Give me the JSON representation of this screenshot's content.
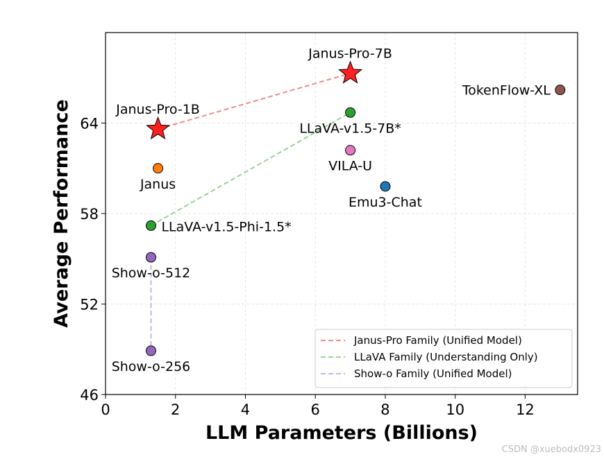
{
  "chart_data": {
    "type": "scatter",
    "xlabel": "LLM Parameters (Billions)",
    "ylabel": "Average Performance",
    "xlim": [
      0,
      13.5
    ],
    "ylim": [
      46,
      70
    ],
    "xticks": [
      0,
      2,
      4,
      6,
      8,
      10,
      12
    ],
    "yticks": [
      46,
      52,
      58,
      64
    ],
    "grid": true,
    "legend_position": "bottom-right",
    "points": [
      {
        "label": "Janus-Pro-7B",
        "x": 7,
        "y": 67.3,
        "color": "#ff2020",
        "marker": "star",
        "label_pos": "above"
      },
      {
        "label": "Janus-Pro-1B",
        "x": 1.5,
        "y": 63.6,
        "color": "#ff2020",
        "marker": "star",
        "label_pos": "above"
      },
      {
        "label": "TokenFlow-XL",
        "x": 13,
        "y": 66.2,
        "color": "#8c564b",
        "marker": "circle",
        "label_pos": "left"
      },
      {
        "label": "LLaVA-v1.5-7B*",
        "x": 7,
        "y": 64.7,
        "color": "#2ca02c",
        "marker": "circle",
        "label_pos": "below"
      },
      {
        "label": "VILA-U",
        "x": 7,
        "y": 62.2,
        "color": "#e377c2",
        "marker": "circle",
        "label_pos": "below"
      },
      {
        "label": "Janus",
        "x": 1.5,
        "y": 61.0,
        "color": "#ff7f0e",
        "marker": "circle",
        "label_pos": "below"
      },
      {
        "label": "Emu3-Chat",
        "x": 8,
        "y": 59.8,
        "color": "#1f77b4",
        "marker": "circle",
        "label_pos": "below"
      },
      {
        "label": "LLaVA-v1.5-Phi-1.5*",
        "x": 1.3,
        "y": 57.2,
        "color": "#2ca02c",
        "marker": "circle",
        "label_pos": "right"
      },
      {
        "label": "Show-o-512",
        "x": 1.3,
        "y": 55.1,
        "color": "#9467bd",
        "marker": "circle",
        "label_pos": "below"
      },
      {
        "label": "Show-o-256",
        "x": 1.3,
        "y": 48.9,
        "color": "#9467bd",
        "marker": "circle",
        "label_pos": "below"
      }
    ],
    "families": [
      {
        "name": "Janus-Pro Family (Unified Model)",
        "color": "#ee8a8a",
        "points": [
          [
            1.5,
            63.6
          ],
          [
            7,
            67.3
          ]
        ]
      },
      {
        "name": "LLaVA Family (Understanding Only)",
        "color": "#98d198",
        "points": [
          [
            1.3,
            57.2
          ],
          [
            7,
            64.7
          ]
        ]
      },
      {
        "name": "Show-o Family (Unified Model)",
        "color": "#c7b5e0",
        "points": [
          [
            1.3,
            55.1
          ],
          [
            1.3,
            48.9
          ]
        ]
      }
    ]
  },
  "watermark": "CSDN @xuebodx0923"
}
